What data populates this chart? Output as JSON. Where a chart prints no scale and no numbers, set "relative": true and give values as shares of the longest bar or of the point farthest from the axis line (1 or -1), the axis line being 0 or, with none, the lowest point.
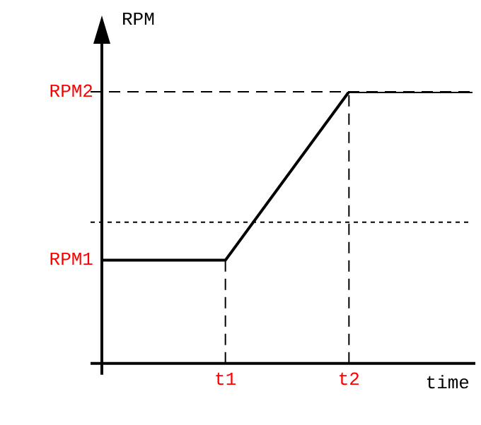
{
  "chart_data": {
    "type": "line",
    "relative": true,
    "xlabel": "time",
    "ylabel": "RPM",
    "categories": [
      null,
      "t1",
      "t2",
      null
    ],
    "series": [
      {
        "color": "#000000",
        "values": [
          0.38,
          0.38,
          1,
          1
        ]
      }
    ],
    "ref_lines": [
      {
        "axis": "y",
        "value": 1,
        "label": "RPM2",
        "line_style": "dashed",
        "color": "#000000"
      },
      {
        "axis": "y",
        "value": 0.52,
        "line_style": "dotted",
        "color": "#000000"
      },
      {
        "axis": "x",
        "value": "t1",
        "line_style": "dashed",
        "color": "#000000"
      },
      {
        "axis": "x",
        "value": "t2",
        "line_style": "dashed",
        "color": "#000000"
      }
    ],
    "annotations": [
      "RPM1"
    ],
    "marker": "none",
    "line_style": "solid",
    "legend": false,
    "grid": false,
    "tick_labels": "x"
  }
}
